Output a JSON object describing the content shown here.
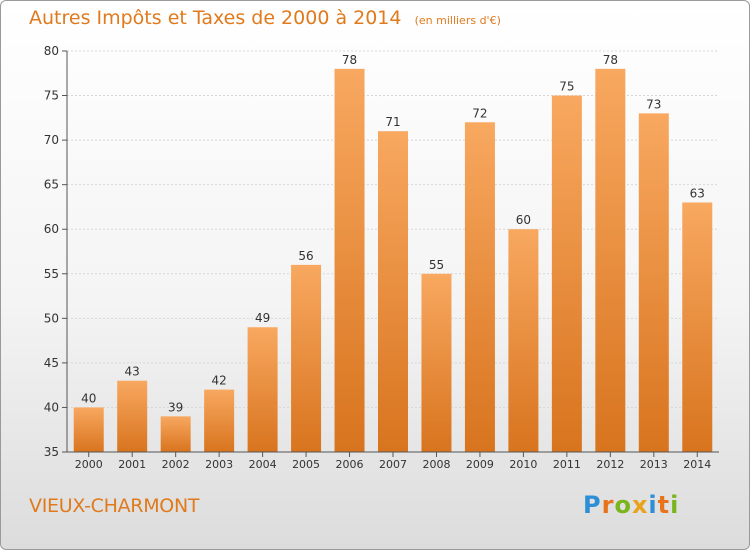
{
  "title": "Autres Impôts et Taxes de 2000 à 2014",
  "subtitle": "(en milliers d'€)",
  "commune": "VIEUX-CHARMONT",
  "logo": {
    "letters": [
      "P",
      "r",
      "o",
      "x",
      "i",
      "t",
      "i"
    ],
    "colors": [
      "#2e8fd6",
      "#e8731c",
      "#7ab51d",
      "#e8a21c",
      "#2e8fd6",
      "#e8731c",
      "#7ab51d"
    ]
  },
  "colors": {
    "bar_top": "#f8a860",
    "bar_bottom": "#d8741e",
    "accent": "#e07a1c"
  },
  "chart_data": {
    "type": "bar",
    "categories": [
      "2000",
      "2001",
      "2002",
      "2003",
      "2004",
      "2005",
      "2006",
      "2007",
      "2008",
      "2009",
      "2010",
      "2011",
      "2012",
      "2013",
      "2014"
    ],
    "values": [
      40,
      43,
      39,
      42,
      49,
      56,
      78,
      71,
      55,
      72,
      60,
      75,
      78,
      73,
      63
    ],
    "ylim": [
      35,
      80
    ],
    "yticks": [
      35,
      40,
      45,
      50,
      55,
      60,
      65,
      70,
      75,
      80
    ],
    "grid": "horizontal",
    "data_labels": true
  }
}
